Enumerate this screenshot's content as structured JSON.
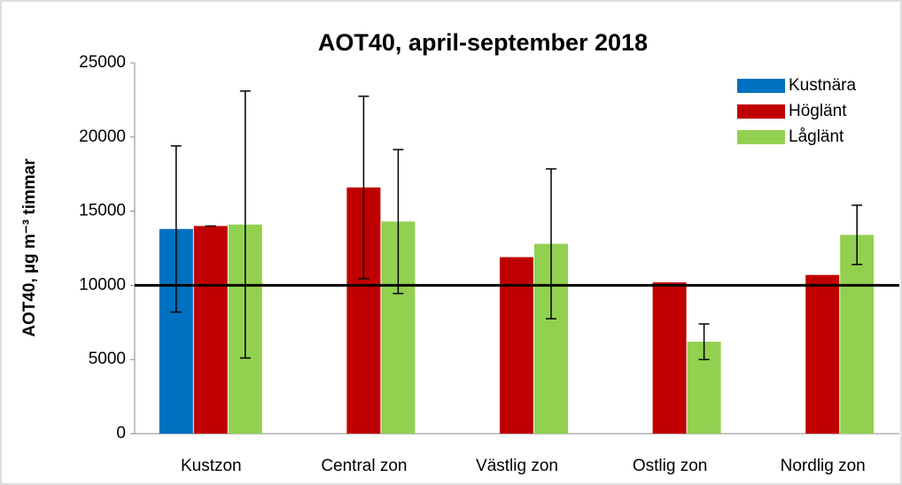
{
  "chart_data": {
    "type": "bar",
    "title": "AOT40, april-september 2018",
    "y_label": "AOT40, µg m⁻³ timmar",
    "categories": [
      "Kustzon",
      "Central zon",
      "Västlig zon",
      "Ostlig zon",
      "Nordlig zon"
    ],
    "series": [
      {
        "name": "Kustnära",
        "color": "#0070c0",
        "values": [
          13800,
          null,
          null,
          null,
          null
        ],
        "errors": [
          5600,
          null,
          null,
          null,
          null
        ]
      },
      {
        "name": "Höglänt",
        "color": "#c00000",
        "values": [
          14000,
          16600,
          11900,
          10200,
          10700
        ],
        "errors": [
          0,
          6150,
          null,
          null,
          null
        ]
      },
      {
        "name": "Låglänt",
        "color": "#92d050",
        "values": [
          14100,
          14300,
          12800,
          6200,
          13400
        ],
        "errors": [
          9000,
          4850,
          5050,
          1200,
          2000
        ]
      }
    ],
    "reference_line": 10000,
    "ylim": [
      0,
      25000
    ],
    "yticks": [
      0,
      5000,
      10000,
      15000,
      20000,
      25000
    ],
    "legend": "upper right",
    "grid": false
  }
}
